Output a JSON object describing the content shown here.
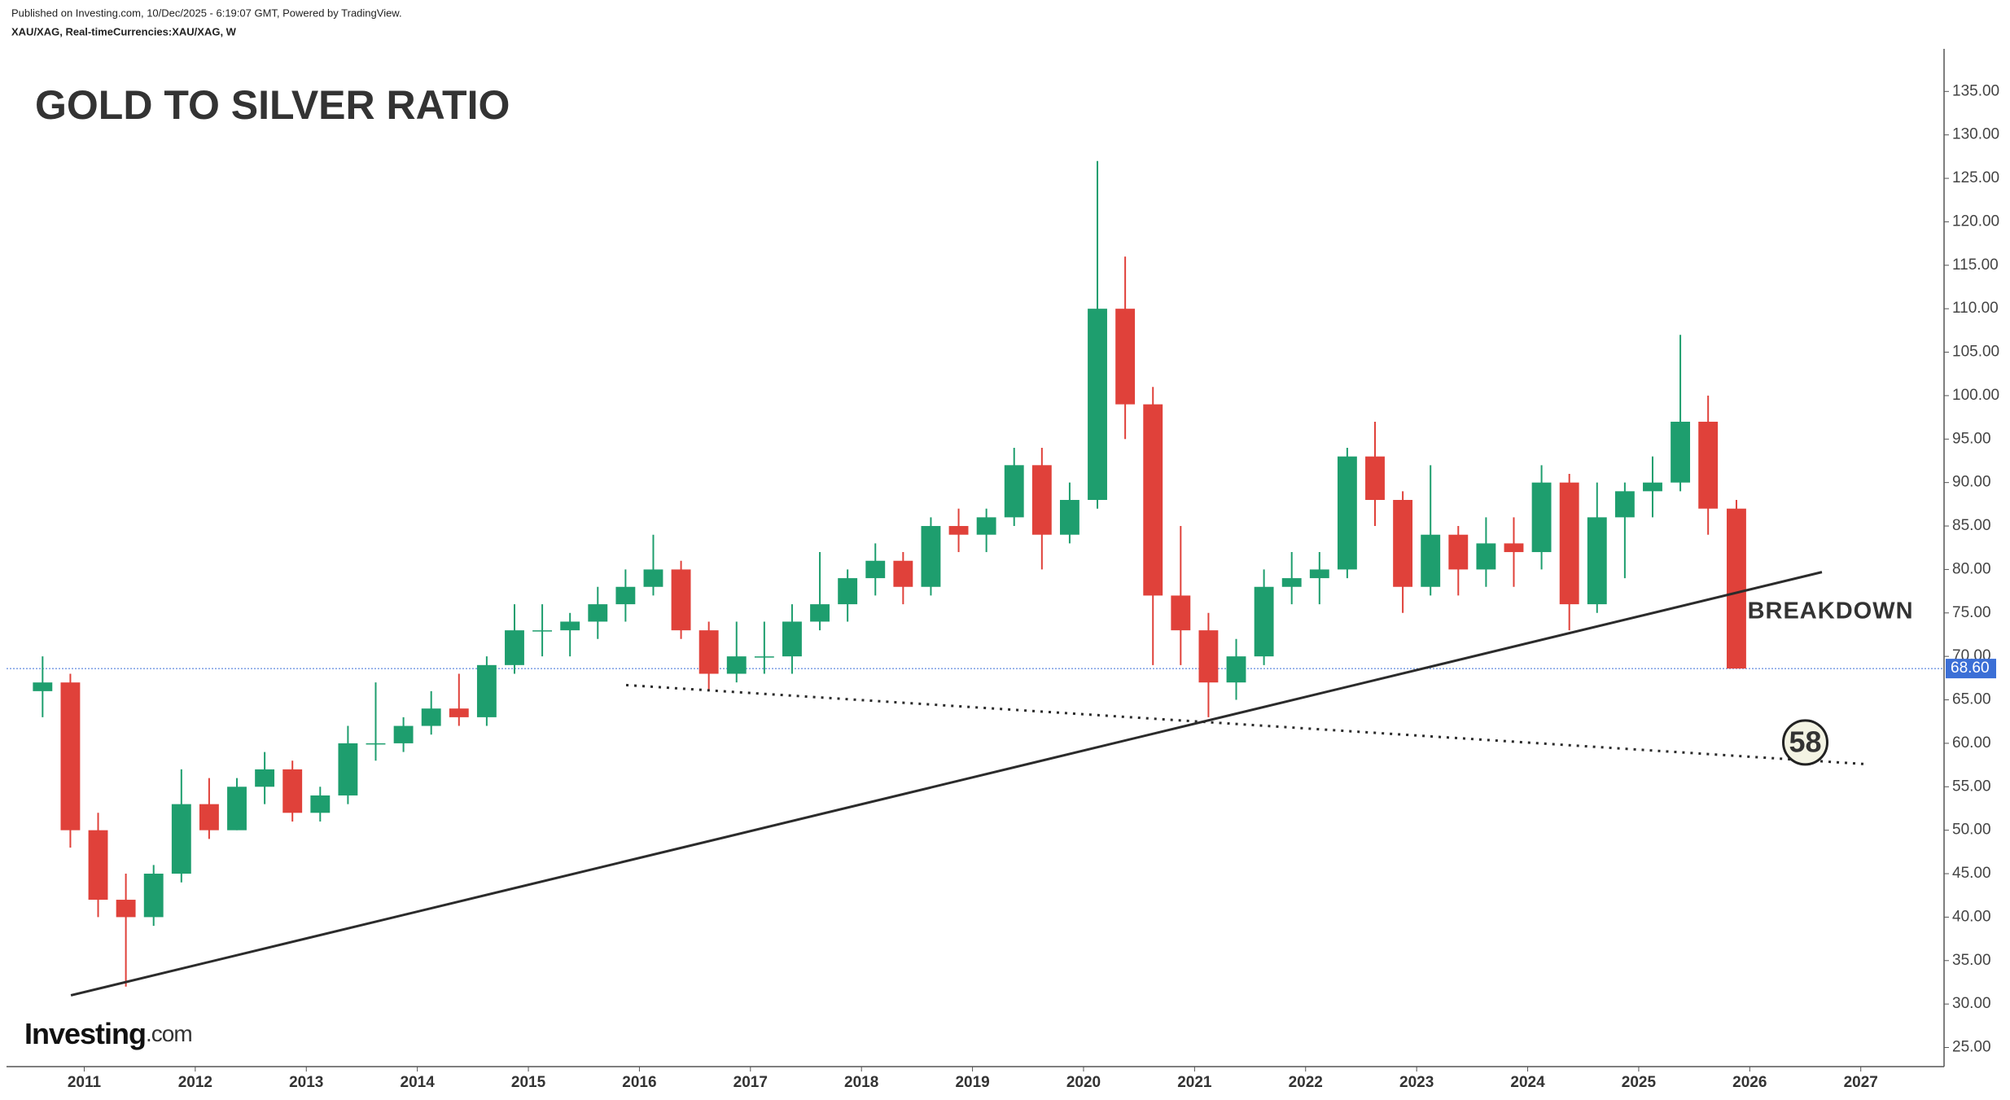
{
  "header": {
    "published": "Published on Investing.com, 10/Dec/2025 - 6:19:07 GMT, Powered by TradingView.",
    "symbol": "XAU/XAG, Real-timeCurrencies:XAU/XAG, W"
  },
  "logo": {
    "brand": "Investing",
    "suffix": ".com"
  },
  "chart_data": {
    "type": "candlestick",
    "title": "GOLD TO SILVER RATIO",
    "x": [
      2010.625,
      2010.875,
      2011.125,
      2011.375,
      2011.625,
      2011.875,
      2012.125,
      2012.375,
      2012.625,
      2012.875,
      2013.125,
      2013.375,
      2013.625,
      2013.875,
      2014.125,
      2014.375,
      2014.625,
      2014.875,
      2015.125,
      2015.375,
      2015.625,
      2015.875,
      2016.125,
      2016.375,
      2016.625,
      2016.875,
      2017.125,
      2017.375,
      2017.625,
      2017.875,
      2018.125,
      2018.375,
      2018.625,
      2018.875,
      2019.125,
      2019.375,
      2019.625,
      2019.875,
      2020.125,
      2020.375,
      2020.625,
      2020.875,
      2021.125,
      2021.375,
      2021.625,
      2021.875,
      2022.125,
      2022.375,
      2022.625,
      2022.875,
      2023.125,
      2023.375,
      2023.625,
      2023.875,
      2024.125,
      2024.375,
      2024.625,
      2024.875,
      2025.125,
      2025.375,
      2025.625,
      2025.88
    ],
    "open": [
      66,
      67,
      50,
      42,
      40,
      45,
      53,
      50,
      55,
      57,
      52,
      54,
      60,
      60,
      62,
      64,
      63,
      69,
      73,
      73,
      74,
      76,
      78,
      80,
      73,
      68,
      70,
      70,
      74,
      76,
      79,
      81,
      78,
      85,
      84,
      86,
      92,
      84,
      88,
      110,
      99,
      77,
      73,
      67,
      70,
      78,
      79,
      80,
      93,
      88,
      78,
      84,
      80,
      83,
      82,
      90,
      76,
      86,
      89,
      90,
      97,
      87
    ],
    "high": [
      70,
      68,
      52,
      45,
      46,
      57,
      56,
      56,
      59,
      58,
      55,
      62,
      67,
      63,
      66,
      68,
      70,
      76,
      76,
      75,
      78,
      80,
      84,
      81,
      74,
      74,
      74,
      76,
      82,
      80,
      83,
      82,
      86,
      87,
      87,
      94,
      94,
      90,
      127,
      116,
      101,
      85,
      75,
      72,
      80,
      82,
      82,
      94,
      97,
      89,
      92,
      85,
      86,
      86,
      92,
      91,
      90,
      90,
      93,
      107,
      100,
      88
    ],
    "low": [
      63,
      48,
      40,
      32,
      39,
      44,
      49,
      50,
      53,
      51,
      51,
      53,
      58,
      59,
      61,
      62,
      62,
      68,
      70,
      70,
      72,
      74,
      77,
      72,
      66,
      67,
      68,
      68,
      73,
      74,
      77,
      76,
      77,
      82,
      82,
      85,
      80,
      83,
      87,
      95,
      69,
      69,
      63,
      65,
      69,
      76,
      76,
      79,
      85,
      75,
      77,
      77,
      78,
      78,
      80,
      73,
      75,
      79,
      86,
      89,
      84,
      68.6
    ],
    "close": [
      67,
      50,
      42,
      40,
      45,
      53,
      50,
      55,
      57,
      52,
      54,
      60,
      60,
      62,
      64,
      63,
      69,
      73,
      73,
      74,
      76,
      78,
      80,
      73,
      68,
      70,
      70,
      74,
      76,
      79,
      81,
      78,
      85,
      84,
      86,
      92,
      84,
      88,
      110,
      99,
      77,
      73,
      67,
      70,
      78,
      79,
      80,
      93,
      88,
      78,
      84,
      80,
      83,
      82,
      90,
      76,
      86,
      89,
      90,
      97,
      87,
      68.6
    ],
    "up_color": "#1e9e6e",
    "down_color": "#e0413a",
    "xlim": [
      2010.3,
      2027.75
    ],
    "xticks": [
      2011,
      2012,
      2013,
      2014,
      2015,
      2016,
      2017,
      2018,
      2019,
      2020,
      2021,
      2022,
      2023,
      2024,
      2025,
      2026,
      2027
    ],
    "ylim": [
      22.8,
      139.9
    ],
    "yticks": [
      {
        "value": 25,
        "label": "25.00"
      },
      {
        "value": 30,
        "label": "30.00"
      },
      {
        "value": 35,
        "label": "35.00"
      },
      {
        "value": 40,
        "label": "40.00"
      },
      {
        "value": 45,
        "label": "45.00"
      },
      {
        "value": 50,
        "label": "50.00"
      },
      {
        "value": 55,
        "label": "55.00"
      },
      {
        "value": 60,
        "label": "60.00"
      },
      {
        "value": 65,
        "label": "65.00"
      },
      {
        "value": 70,
        "label": "70.00"
      },
      {
        "value": 75,
        "label": "75.00"
      },
      {
        "value": 80,
        "label": "80.00"
      },
      {
        "value": 85,
        "label": "85.00"
      },
      {
        "value": 90,
        "label": "90.00"
      },
      {
        "value": 95,
        "label": "95.00"
      },
      {
        "value": 100,
        "label": "100.00"
      },
      {
        "value": 105,
        "label": "105.00"
      },
      {
        "value": 110,
        "label": "110.00"
      },
      {
        "value": 115,
        "label": "115.00"
      },
      {
        "value": 120,
        "label": "120.00"
      },
      {
        "value": 125,
        "label": "125.00"
      },
      {
        "value": 130,
        "label": "130.00"
      },
      {
        "value": 135,
        "label": "135.00"
      }
    ],
    "grid": false,
    "last_price": {
      "value": 68.6,
      "label": "68.60",
      "color": "#3b6fd6"
    },
    "trendlines": [
      {
        "style": "solid",
        "color": "#2b2b2b",
        "x": [
          2010.88,
          2026.65
        ],
        "y": [
          31.0,
          79.7
        ]
      },
      {
        "style": "dotted",
        "color": "#2b2b2b",
        "x": [
          2015.88,
          2027.05
        ],
        "y": [
          66.7,
          57.6
        ]
      }
    ],
    "annotations": [
      {
        "text": "BREAKDOWN",
        "x": 2025.98,
        "y": 75.1
      },
      {
        "text": "58",
        "x": 2026.5,
        "y": 60.1,
        "circle": true
      }
    ]
  }
}
